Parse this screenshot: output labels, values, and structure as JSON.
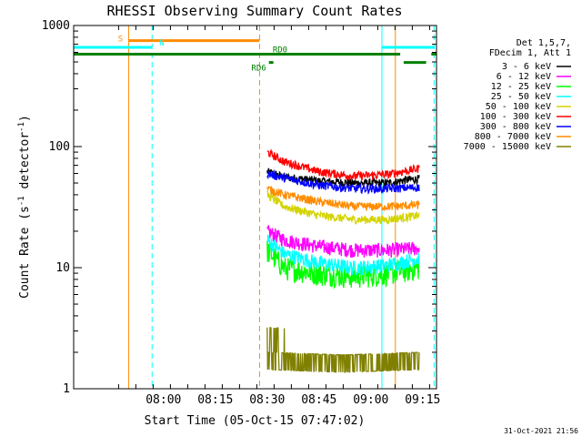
{
  "chart_data": {
    "type": "line",
    "title": "RHESSI Observing Summary Count Rates",
    "xlabel": "Start Time (05-Oct-15 07:47:02)",
    "ylabel_main": "Count Rate (s",
    "ylabel_sup1": "-1",
    "ylabel_mid": " detector",
    "ylabel_sup2": "-1",
    "ylabel_end": ")",
    "yscale": "log",
    "ylim": [
      1,
      1000
    ],
    "xlim_minutes": [
      -13,
      92
    ],
    "x_ticks": [
      {
        "minute": 13,
        "label": "08:00"
      },
      {
        "minute": 28,
        "label": "08:15"
      },
      {
        "minute": 43,
        "label": "08:30"
      },
      {
        "minute": 58,
        "label": "08:45"
      },
      {
        "minute": 73,
        "label": "09:00"
      },
      {
        "minute": 88,
        "label": "09:15"
      }
    ],
    "y_ticks": [
      {
        "value": 1,
        "label": "1"
      },
      {
        "value": 10,
        "label": "10"
      },
      {
        "value": 100,
        "label": "100"
      },
      {
        "value": 1000,
        "label": "1000"
      }
    ],
    "legend_header": [
      "Det 1,5,7,",
      "FDecim 1, Att 1"
    ],
    "legend_position": "right",
    "series": [
      {
        "name": "3 - 6 keV",
        "color": "#000000",
        "values": [
          {
            "t": 0,
            "v": 62
          },
          {
            "t": 5,
            "v": 56
          },
          {
            "t": 15,
            "v": 52
          },
          {
            "t": 25,
            "v": 50
          },
          {
            "t": 35,
            "v": 50
          },
          {
            "t": 40,
            "v": 53
          },
          {
            "t": 44,
            "v": 54
          }
        ]
      },
      {
        "name": "6 - 12 keV",
        "color": "#ff00ff",
        "values": [
          {
            "t": 0,
            "v": 20
          },
          {
            "t": 5,
            "v": 17
          },
          {
            "t": 15,
            "v": 15
          },
          {
            "t": 25,
            "v": 14
          },
          {
            "t": 35,
            "v": 14
          },
          {
            "t": 44,
            "v": 14.5
          }
        ]
      },
      {
        "name": "12 - 25 keV",
        "color": "#00ff00",
        "values": [
          {
            "t": 0,
            "v": 14
          },
          {
            "t": 5,
            "v": 10
          },
          {
            "t": 15,
            "v": 9
          },
          {
            "t": 25,
            "v": 8.5
          },
          {
            "t": 35,
            "v": 9
          },
          {
            "t": 44,
            "v": 10
          }
        ]
      },
      {
        "name": "25 - 50 keV",
        "color": "#00ffff",
        "values": [
          {
            "t": 0,
            "v": 17
          },
          {
            "t": 5,
            "v": 13
          },
          {
            "t": 15,
            "v": 11
          },
          {
            "t": 25,
            "v": 10
          },
          {
            "t": 35,
            "v": 10.5
          },
          {
            "t": 44,
            "v": 12
          }
        ]
      },
      {
        "name": "50 - 100 keV",
        "color": "#d4d400",
        "values": [
          {
            "t": 0,
            "v": 40
          },
          {
            "t": 5,
            "v": 32
          },
          {
            "t": 15,
            "v": 27
          },
          {
            "t": 25,
            "v": 25
          },
          {
            "t": 35,
            "v": 25
          },
          {
            "t": 44,
            "v": 27
          }
        ]
      },
      {
        "name": "100 - 300 keV",
        "color": "#ff0000",
        "values": [
          {
            "t": 0,
            "v": 90
          },
          {
            "t": 5,
            "v": 75
          },
          {
            "t": 15,
            "v": 62
          },
          {
            "t": 25,
            "v": 57
          },
          {
            "t": 35,
            "v": 59
          },
          {
            "t": 44,
            "v": 66
          }
        ]
      },
      {
        "name": "300 - 800 keV",
        "color": "#0000ff",
        "values": [
          {
            "t": 0,
            "v": 60
          },
          {
            "t": 5,
            "v": 55
          },
          {
            "t": 15,
            "v": 48
          },
          {
            "t": 25,
            "v": 45
          },
          {
            "t": 35,
            "v": 45
          },
          {
            "t": 44,
            "v": 46
          }
        ]
      },
      {
        "name": "800 - 7000 keV",
        "color": "#ff8c00",
        "values": [
          {
            "t": 0,
            "v": 45
          },
          {
            "t": 5,
            "v": 40
          },
          {
            "t": 15,
            "v": 35
          },
          {
            "t": 25,
            "v": 32
          },
          {
            "t": 35,
            "v": 32
          },
          {
            "t": 44,
            "v": 33
          }
        ]
      },
      {
        "name": "7000 - 15000 keV",
        "color": "#808000",
        "values": [
          {
            "t": 0,
            "v": 2
          },
          {
            "t": 22,
            "v": 1.9
          },
          {
            "t": 44,
            "v": 2
          }
        ]
      }
    ],
    "data_window_minutes": [
      43,
      87
    ],
    "vertical_lines": [
      {
        "minute": 2.9,
        "color": "#ff8c00",
        "style": "solid"
      },
      {
        "minute": 9.7,
        "color": "#00ffff",
        "style": "dashed"
      },
      {
        "minute": 40.8,
        "color": "#ff8c00",
        "style": "dashed"
      },
      {
        "minute": 76.2,
        "color": "#00ffff",
        "style": "solid"
      },
      {
        "minute": 80.1,
        "color": "#ff8c00",
        "style": "solid"
      },
      {
        "minute": 91.3,
        "color": "#00ffff",
        "style": "dashed"
      }
    ],
    "flag_bars": [
      {
        "label": "S",
        "color": "#ff8c00",
        "level": 750,
        "segments": [
          [
            3,
            40.8
          ]
        ]
      },
      {
        "label": "N",
        "color": "#00ffff",
        "level": 660,
        "segments": [
          [
            -13,
            9.7
          ],
          [
            76.2,
            91.5
          ]
        ]
      },
      {
        "label": "RD0",
        "color": "#008000",
        "level": 580,
        "segments": [
          [
            -13,
            81.5
          ],
          [
            90.5,
            92
          ]
        ]
      },
      {
        "label": "RD6",
        "color": "#008000",
        "level": 495,
        "segments": [
          [
            43.5,
            44.8
          ],
          [
            82.5,
            89
          ]
        ]
      }
    ],
    "timestamp": "31-Oct-2021 21:56"
  }
}
